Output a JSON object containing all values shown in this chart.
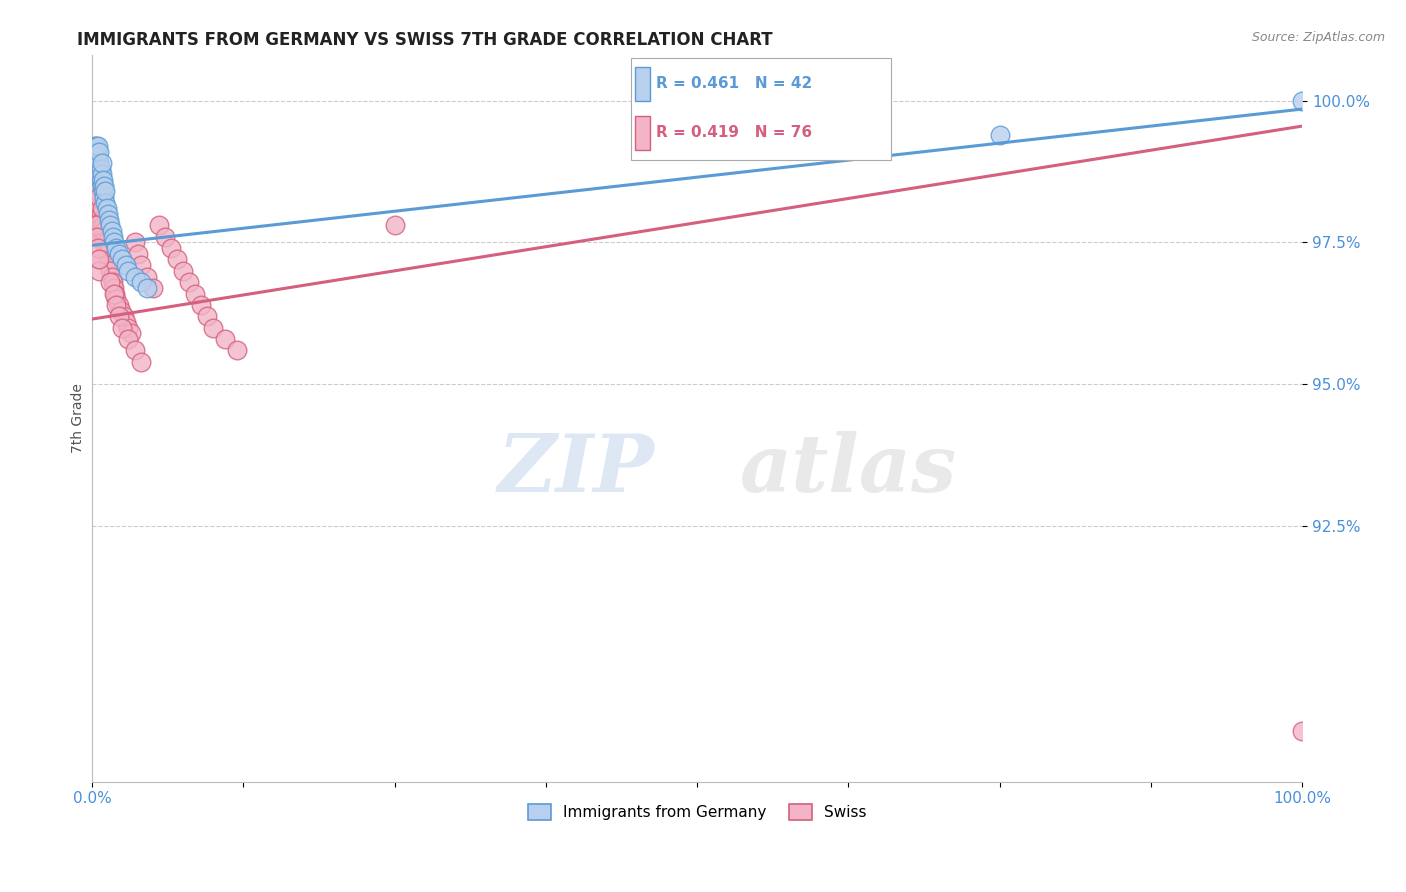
{
  "title": "IMMIGRANTS FROM GERMANY VS SWISS 7TH GRADE CORRELATION CHART",
  "source": "Source: ZipAtlas.com",
  "ylabel": "7th Grade",
  "xlim": [
    0.0,
    1.0
  ],
  "ylim": [
    0.88,
    1.008
  ],
  "x_ticks": [
    0.0,
    0.125,
    0.25,
    0.375,
    0.5,
    0.625,
    0.75,
    0.875,
    1.0
  ],
  "x_tick_labels": [
    "0.0%",
    "",
    "",
    "",
    "",
    "",
    "",
    "",
    "100.0%"
  ],
  "y_ticks": [
    0.925,
    0.95,
    0.975,
    1.0
  ],
  "y_tick_labels": [
    "92.5%",
    "95.0%",
    "97.5%",
    "100.0%"
  ],
  "legend_labels": [
    "Immigrants from Germany",
    "Swiss"
  ],
  "r_germany": 0.461,
  "n_germany": 42,
  "r_swiss": 0.419,
  "n_swiss": 76,
  "germany_color": "#b8d0ed",
  "germany_edge_color": "#5b9bd5",
  "germany_line_color": "#5b9bd5",
  "swiss_color": "#f2b4c6",
  "swiss_edge_color": "#d45f7e",
  "swiss_line_color": "#d45f7e",
  "watermark_zip": "ZIP",
  "watermark_atlas": "atlas",
  "germany_x": [
    0.001,
    0.002,
    0.002,
    0.003,
    0.003,
    0.003,
    0.004,
    0.004,
    0.005,
    0.005,
    0.005,
    0.006,
    0.006,
    0.006,
    0.007,
    0.007,
    0.008,
    0.008,
    0.008,
    0.009,
    0.009,
    0.01,
    0.01,
    0.011,
    0.011,
    0.012,
    0.013,
    0.014,
    0.015,
    0.016,
    0.017,
    0.018,
    0.02,
    0.022,
    0.025,
    0.028,
    0.03,
    0.035,
    0.04,
    0.045,
    0.75,
    1.0
  ],
  "germany_y": [
    0.99,
    0.991,
    0.992,
    0.99,
    0.991,
    0.992,
    0.989,
    0.991,
    0.988,
    0.99,
    0.992,
    0.987,
    0.989,
    0.991,
    0.986,
    0.988,
    0.985,
    0.987,
    0.989,
    0.984,
    0.986,
    0.983,
    0.985,
    0.982,
    0.984,
    0.981,
    0.98,
    0.979,
    0.978,
    0.977,
    0.976,
    0.975,
    0.974,
    0.973,
    0.972,
    0.971,
    0.97,
    0.969,
    0.968,
    0.967,
    0.994,
    1.0
  ],
  "swiss_x": [
    0.001,
    0.001,
    0.002,
    0.002,
    0.003,
    0.003,
    0.003,
    0.004,
    0.004,
    0.004,
    0.005,
    0.005,
    0.005,
    0.006,
    0.006,
    0.006,
    0.007,
    0.007,
    0.008,
    0.008,
    0.008,
    0.009,
    0.009,
    0.01,
    0.01,
    0.011,
    0.011,
    0.012,
    0.012,
    0.013,
    0.014,
    0.015,
    0.016,
    0.017,
    0.018,
    0.019,
    0.02,
    0.022,
    0.024,
    0.026,
    0.028,
    0.03,
    0.032,
    0.035,
    0.038,
    0.04,
    0.045,
    0.05,
    0.055,
    0.06,
    0.065,
    0.07,
    0.075,
    0.08,
    0.085,
    0.09,
    0.095,
    0.1,
    0.11,
    0.12,
    0.005,
    0.006,
    0.015,
    0.018,
    0.02,
    0.022,
    0.025,
    0.03,
    0.035,
    0.04,
    0.003,
    0.004,
    0.005,
    0.006,
    0.25,
    1.0
  ],
  "swiss_y": [
    0.984,
    0.986,
    0.983,
    0.985,
    0.982,
    0.984,
    0.986,
    0.981,
    0.983,
    0.985,
    0.98,
    0.982,
    0.984,
    0.979,
    0.981,
    0.983,
    0.978,
    0.98,
    0.977,
    0.979,
    0.981,
    0.976,
    0.978,
    0.975,
    0.977,
    0.974,
    0.976,
    0.973,
    0.975,
    0.972,
    0.971,
    0.97,
    0.969,
    0.968,
    0.967,
    0.966,
    0.965,
    0.964,
    0.963,
    0.962,
    0.961,
    0.96,
    0.959,
    0.975,
    0.973,
    0.971,
    0.969,
    0.967,
    0.978,
    0.976,
    0.974,
    0.972,
    0.97,
    0.968,
    0.966,
    0.964,
    0.962,
    0.96,
    0.958,
    0.956,
    0.972,
    0.97,
    0.968,
    0.966,
    0.964,
    0.962,
    0.96,
    0.958,
    0.956,
    0.954,
    0.978,
    0.976,
    0.974,
    0.972,
    0.978,
    0.889
  ]
}
